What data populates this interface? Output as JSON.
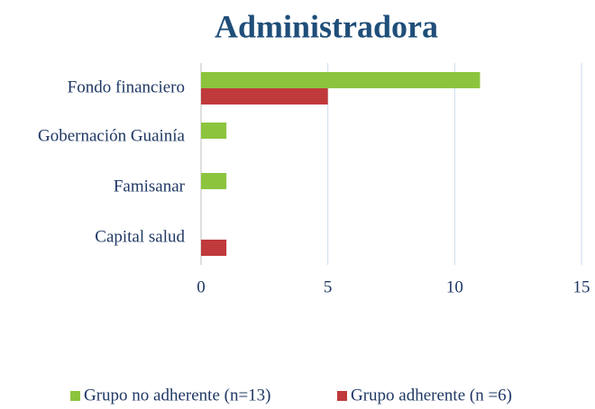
{
  "chart_data": {
    "type": "barh",
    "title": "Administradora",
    "categories": [
      "Fondo financiero",
      "Gobernación Guainía",
      "Famisanar",
      "Capital salud"
    ],
    "series": [
      {
        "name": "Grupo no adherente (n=13)",
        "color": "#8cc43e",
        "values": [
          11,
          1,
          1,
          0
        ]
      },
      {
        "name": "Grupo adherente (n =6)",
        "color": "#c0393b",
        "values": [
          5,
          0,
          0,
          1
        ]
      }
    ],
    "xlim": [
      0,
      15
    ],
    "xticks": [
      0,
      5,
      10,
      15
    ],
    "grid": true,
    "legend": "bottom"
  }
}
